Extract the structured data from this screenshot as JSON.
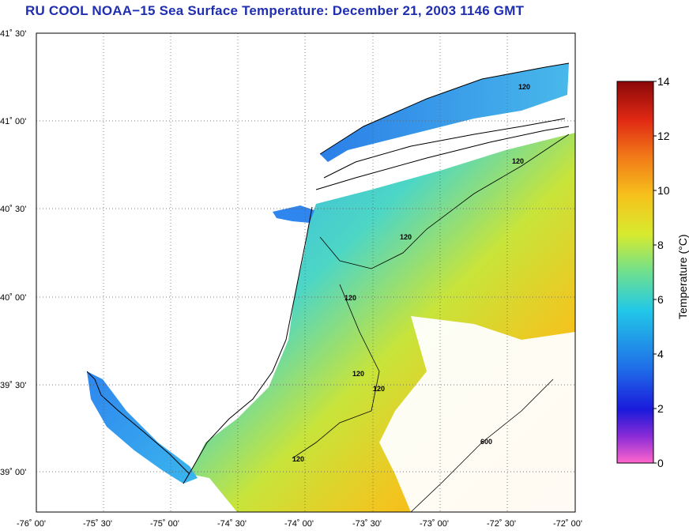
{
  "title": "RU COOL  NOAA−15  Sea Surface Temperature:  December 21, 2003 1146 GMT",
  "map": {
    "lat_labels": [
      "41˚ 30'",
      "41˚ 00'",
      "40˚ 30'",
      "40˚ 00'",
      "39˚ 30'",
      "39˚ 00'"
    ],
    "lon_labels": [
      "-76˚ 00'",
      "-75˚ 30'",
      "-75˚ 00'",
      "-74˚ 30'",
      "-74˚ 00'",
      "-73˚ 30'",
      "-73˚ 00'",
      "-72˚ 30'",
      "-72˚ 00'"
    ],
    "contour_labels": [
      "120",
      "120",
      "120",
      "120",
      "120",
      "120",
      "120",
      "600"
    ],
    "land_color": "#ffffff",
    "coastline_color": "#000000",
    "grid": "dotted"
  },
  "colorbar": {
    "label": "Temperature (°C)",
    "ticks": [
      "14",
      "12",
      "10",
      "8",
      "6",
      "4",
      "2",
      "0"
    ],
    "range": [
      0,
      14
    ],
    "colors": [
      "#ff66cc",
      "#7a2bd6",
      "#1a1adb",
      "#1f7fe8",
      "#22c8e8",
      "#3ee0b0",
      "#a8e04a",
      "#f4ee2a",
      "#f6b21c",
      "#f07018",
      "#e02814",
      "#a00a0a"
    ]
  }
}
